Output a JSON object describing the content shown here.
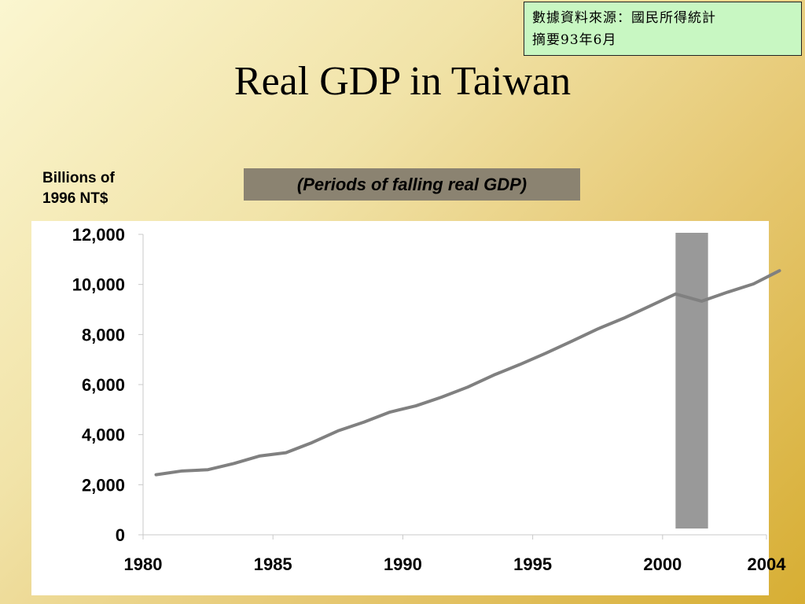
{
  "source_note": {
    "line1": "數據資料來源：國民所得統計",
    "line2": "摘要93年6月"
  },
  "title": "Real GDP in Taiwan",
  "ylabel_lines": [
    "Billions of",
    "1996 NT$"
  ],
  "recession_note": "(Periods of falling real GDP)",
  "colors": {
    "line": "#808080",
    "recession_band": "#999999",
    "note_bg": "#8b8371",
    "source_bg": "#c8f7c2"
  },
  "chart_data": {
    "type": "line",
    "title": "Real GDP in Taiwan",
    "ylabel": "Billions of 1996 NT$",
    "xlabel": "",
    "xlim": [
      1980,
      2004
    ],
    "ylim": [
      0,
      12000
    ],
    "x_ticks": [
      1980,
      1985,
      1990,
      1995,
      2000,
      2004
    ],
    "x_tick_labels": [
      "1980",
      "1985",
      "1990",
      "1995",
      "2000",
      "2004"
    ],
    "y_ticks": [
      0,
      2000,
      4000,
      6000,
      8000,
      10000,
      12000
    ],
    "y_tick_labels": [
      "0",
      "2,000",
      "4,000",
      "6,000",
      "8,000",
      "10,000",
      "12,000"
    ],
    "grid": false,
    "series": [
      {
        "x": [
          1980,
          1981,
          1982,
          1983,
          1984,
          1985,
          1986,
          1987,
          1988,
          1989,
          1990,
          1991,
          1992,
          1993,
          1994,
          1995,
          1996,
          1997,
          1998,
          1999,
          2000,
          2001,
          2002,
          2003,
          2004
        ],
        "values": [
          2400,
          2550,
          2600,
          2850,
          3150,
          3280,
          3680,
          4150,
          4500,
          4900,
          5150,
          5500,
          5900,
          6380,
          6800,
          7250,
          7730,
          8220,
          8650,
          9130,
          9620,
          9330,
          9690,
          10020,
          10550
        ]
      }
    ],
    "shaded_periods": [
      [
        2000.5,
        2001.75
      ]
    ]
  }
}
